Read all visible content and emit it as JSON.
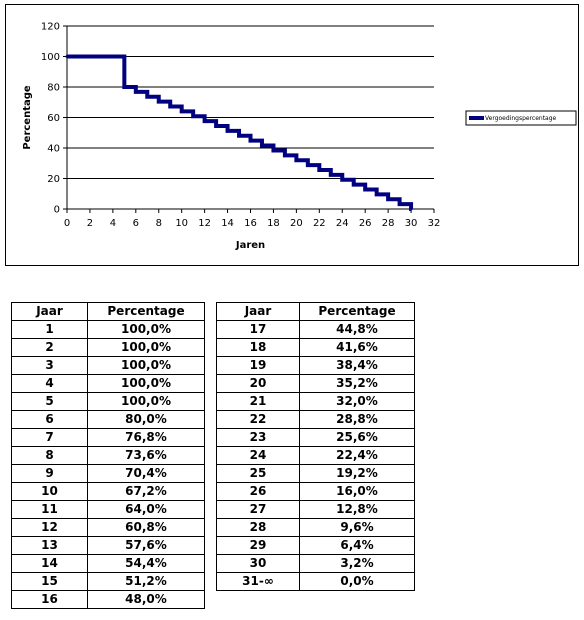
{
  "chart_data": {
    "type": "line",
    "step": true,
    "xlabel": "Jaren",
    "ylabel": "Percentage",
    "xlim": [
      0,
      32
    ],
    "ylim": [
      0,
      120
    ],
    "xticks": [
      0,
      2,
      4,
      6,
      8,
      10,
      12,
      14,
      16,
      18,
      20,
      22,
      24,
      26,
      28,
      30,
      32
    ],
    "yticks": [
      0,
      20,
      40,
      60,
      80,
      100,
      120
    ],
    "grid": "horizontal",
    "legend_position": "right",
    "series": [
      {
        "name": "Vergoedingspercentage",
        "color": "#000080",
        "x": [
          0,
          5,
          6,
          7,
          8,
          9,
          10,
          11,
          12,
          13,
          14,
          15,
          16,
          17,
          18,
          19,
          20,
          21,
          22,
          23,
          24,
          25,
          26,
          27,
          28,
          29,
          30
        ],
        "values": [
          100.0,
          80.0,
          76.8,
          73.6,
          70.4,
          67.2,
          64.0,
          60.8,
          57.6,
          54.4,
          51.2,
          48.0,
          44.8,
          41.6,
          38.4,
          35.2,
          32.0,
          28.8,
          25.6,
          22.4,
          19.2,
          16.0,
          12.8,
          9.6,
          6.4,
          3.2,
          0.0
        ]
      }
    ]
  },
  "table": {
    "headers": [
      "Jaar",
      "Percentage"
    ],
    "left_rows": [
      [
        "1",
        "100,0%"
      ],
      [
        "2",
        "100,0%"
      ],
      [
        "3",
        "100,0%"
      ],
      [
        "4",
        "100,0%"
      ],
      [
        "5",
        "100,0%"
      ],
      [
        "6",
        "80,0%"
      ],
      [
        "7",
        "76,8%"
      ],
      [
        "8",
        "73,6%"
      ],
      [
        "9",
        "70,4%"
      ],
      [
        "10",
        "67,2%"
      ],
      [
        "11",
        "64,0%"
      ],
      [
        "12",
        "60,8%"
      ],
      [
        "13",
        "57,6%"
      ],
      [
        "14",
        "54,4%"
      ],
      [
        "15",
        "51,2%"
      ],
      [
        "16",
        "48,0%"
      ]
    ],
    "right_rows": [
      [
        "17",
        "44,8%"
      ],
      [
        "18",
        "41,6%"
      ],
      [
        "19",
        "38,4%"
      ],
      [
        "20",
        "35,2%"
      ],
      [
        "21",
        "32,0%"
      ],
      [
        "22",
        "28,8%"
      ],
      [
        "23",
        "25,6%"
      ],
      [
        "24",
        "22,4%"
      ],
      [
        "25",
        "19,2%"
      ],
      [
        "26",
        "16,0%"
      ],
      [
        "27",
        "12,8%"
      ],
      [
        "28",
        "9,6%"
      ],
      [
        "29",
        "6,4%"
      ],
      [
        "30",
        "3,2%"
      ],
      [
        "31-∞",
        "0,0%"
      ]
    ]
  }
}
